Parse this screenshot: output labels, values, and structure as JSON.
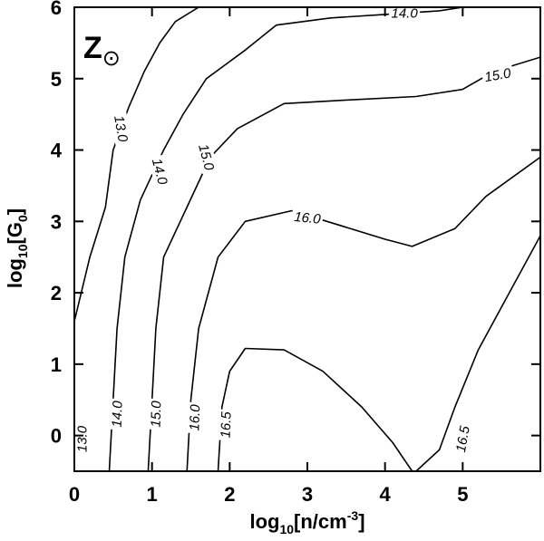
{
  "chart_data": {
    "type": "contour",
    "title": "",
    "xlabel": {
      "base": "log",
      "sub": "10",
      "main": "[n/cm",
      "sup": "-3",
      "end": "]"
    },
    "ylabel": {
      "base": "log",
      "sub": "10",
      "main": "[G",
      "sub2": "0",
      "end": "]"
    },
    "xlim": [
      0,
      6
    ],
    "ylim": [
      -0.5,
      6
    ],
    "xticks": [
      0,
      1,
      2,
      3,
      4,
      5
    ],
    "xtick_labels": [
      "0",
      "1",
      "2",
      "3",
      "4",
      "5"
    ],
    "yticks": [
      0,
      1,
      2,
      3,
      4,
      5,
      6
    ],
    "ytick_labels": [
      "0",
      "1",
      "2",
      "3",
      "4",
      "5",
      "6"
    ],
    "annotation": {
      "main": "Z",
      "symbol": "⊙"
    },
    "contours": [
      {
        "level": "13.0",
        "labels": [
          {
            "text": "13.0",
            "x": 0.6,
            "y": 4.3,
            "angle": 80
          },
          {
            "text": "13.0",
            "x": 0.1,
            "y": -0.05,
            "angle": -90
          }
        ],
        "points": [
          [
            0.0,
            1.6
          ],
          [
            0.2,
            2.5
          ],
          [
            0.4,
            3.2
          ],
          [
            0.5,
            4.0
          ],
          [
            0.7,
            4.6
          ],
          [
            0.9,
            5.1
          ],
          [
            1.1,
            5.5
          ],
          [
            1.3,
            5.8
          ],
          [
            1.6,
            6.0
          ]
        ]
      },
      {
        "level": "14.0",
        "labels": [
          {
            "text": "14.0",
            "x": 1.1,
            "y": 3.7,
            "angle": 75
          },
          {
            "text": "14.0",
            "x": 0.55,
            "y": 0.3,
            "angle": -88
          },
          {
            "text": "14.0",
            "x": 4.25,
            "y": 5.92,
            "angle": 0
          }
        ],
        "points": [
          [
            0.45,
            -0.5
          ],
          [
            0.5,
            0.5
          ],
          [
            0.55,
            1.5
          ],
          [
            0.65,
            2.5
          ],
          [
            0.85,
            3.3
          ],
          [
            1.15,
            4.0
          ],
          [
            1.4,
            4.5
          ],
          [
            1.7,
            5.0
          ],
          [
            2.2,
            5.4
          ],
          [
            2.6,
            5.75
          ],
          [
            3.3,
            5.85
          ],
          [
            4.0,
            5.9
          ],
          [
            4.7,
            5.95
          ],
          [
            5.0,
            6.0
          ]
        ]
      },
      {
        "level": "15.0",
        "labels": [
          {
            "text": "15.0",
            "x": 1.7,
            "y": 3.9,
            "angle": 75
          },
          {
            "text": "15.0",
            "x": 1.05,
            "y": 0.3,
            "angle": -88
          },
          {
            "text": "15.0",
            "x": 5.45,
            "y": 5.05,
            "angle": -10
          }
        ],
        "points": [
          [
            0.95,
            -0.5
          ],
          [
            1.0,
            0.5
          ],
          [
            1.05,
            1.5
          ],
          [
            1.15,
            2.5
          ],
          [
            1.45,
            3.2
          ],
          [
            1.75,
            3.9
          ],
          [
            2.1,
            4.3
          ],
          [
            2.7,
            4.65
          ],
          [
            3.5,
            4.7
          ],
          [
            4.4,
            4.75
          ],
          [
            5.0,
            4.85
          ],
          [
            5.4,
            5.1
          ],
          [
            6.0,
            5.3
          ]
        ]
      },
      {
        "level": "16.0",
        "labels": [
          {
            "text": "16.0",
            "x": 3.0,
            "y": 3.05,
            "angle": 6
          },
          {
            "text": "16.0",
            "x": 1.55,
            "y": 0.25,
            "angle": -88
          }
        ],
        "points": [
          [
            1.45,
            -0.5
          ],
          [
            1.5,
            0.5
          ],
          [
            1.6,
            1.5
          ],
          [
            1.85,
            2.5
          ],
          [
            2.2,
            3.0
          ],
          [
            2.8,
            3.15
          ],
          [
            3.4,
            2.95
          ],
          [
            4.0,
            2.75
          ],
          [
            4.35,
            2.65
          ],
          [
            4.9,
            2.9
          ],
          [
            5.3,
            3.35
          ],
          [
            6.0,
            3.9
          ]
        ]
      },
      {
        "level": "16.5",
        "labels": [
          {
            "text": "16.5",
            "x": 1.95,
            "y": 0.15,
            "angle": -88
          }
        ],
        "points": [
          [
            1.85,
            -0.5
          ],
          [
            1.9,
            0.4
          ],
          [
            2.0,
            0.9
          ],
          [
            2.2,
            1.22
          ],
          [
            2.7,
            1.2
          ],
          [
            3.2,
            0.9
          ],
          [
            3.7,
            0.4
          ],
          [
            4.1,
            -0.1
          ],
          [
            4.35,
            -0.5
          ]
        ]
      },
      {
        "level": "16.5",
        "labels": [
          {
            "text": "16.5",
            "x": 5.0,
            "y": -0.05,
            "angle": -80
          }
        ],
        "points": [
          [
            4.4,
            -0.5
          ],
          [
            4.7,
            -0.2
          ],
          [
            4.9,
            0.4
          ],
          [
            5.2,
            1.2
          ],
          [
            5.6,
            2.0
          ],
          [
            6.0,
            2.8
          ]
        ]
      }
    ]
  }
}
